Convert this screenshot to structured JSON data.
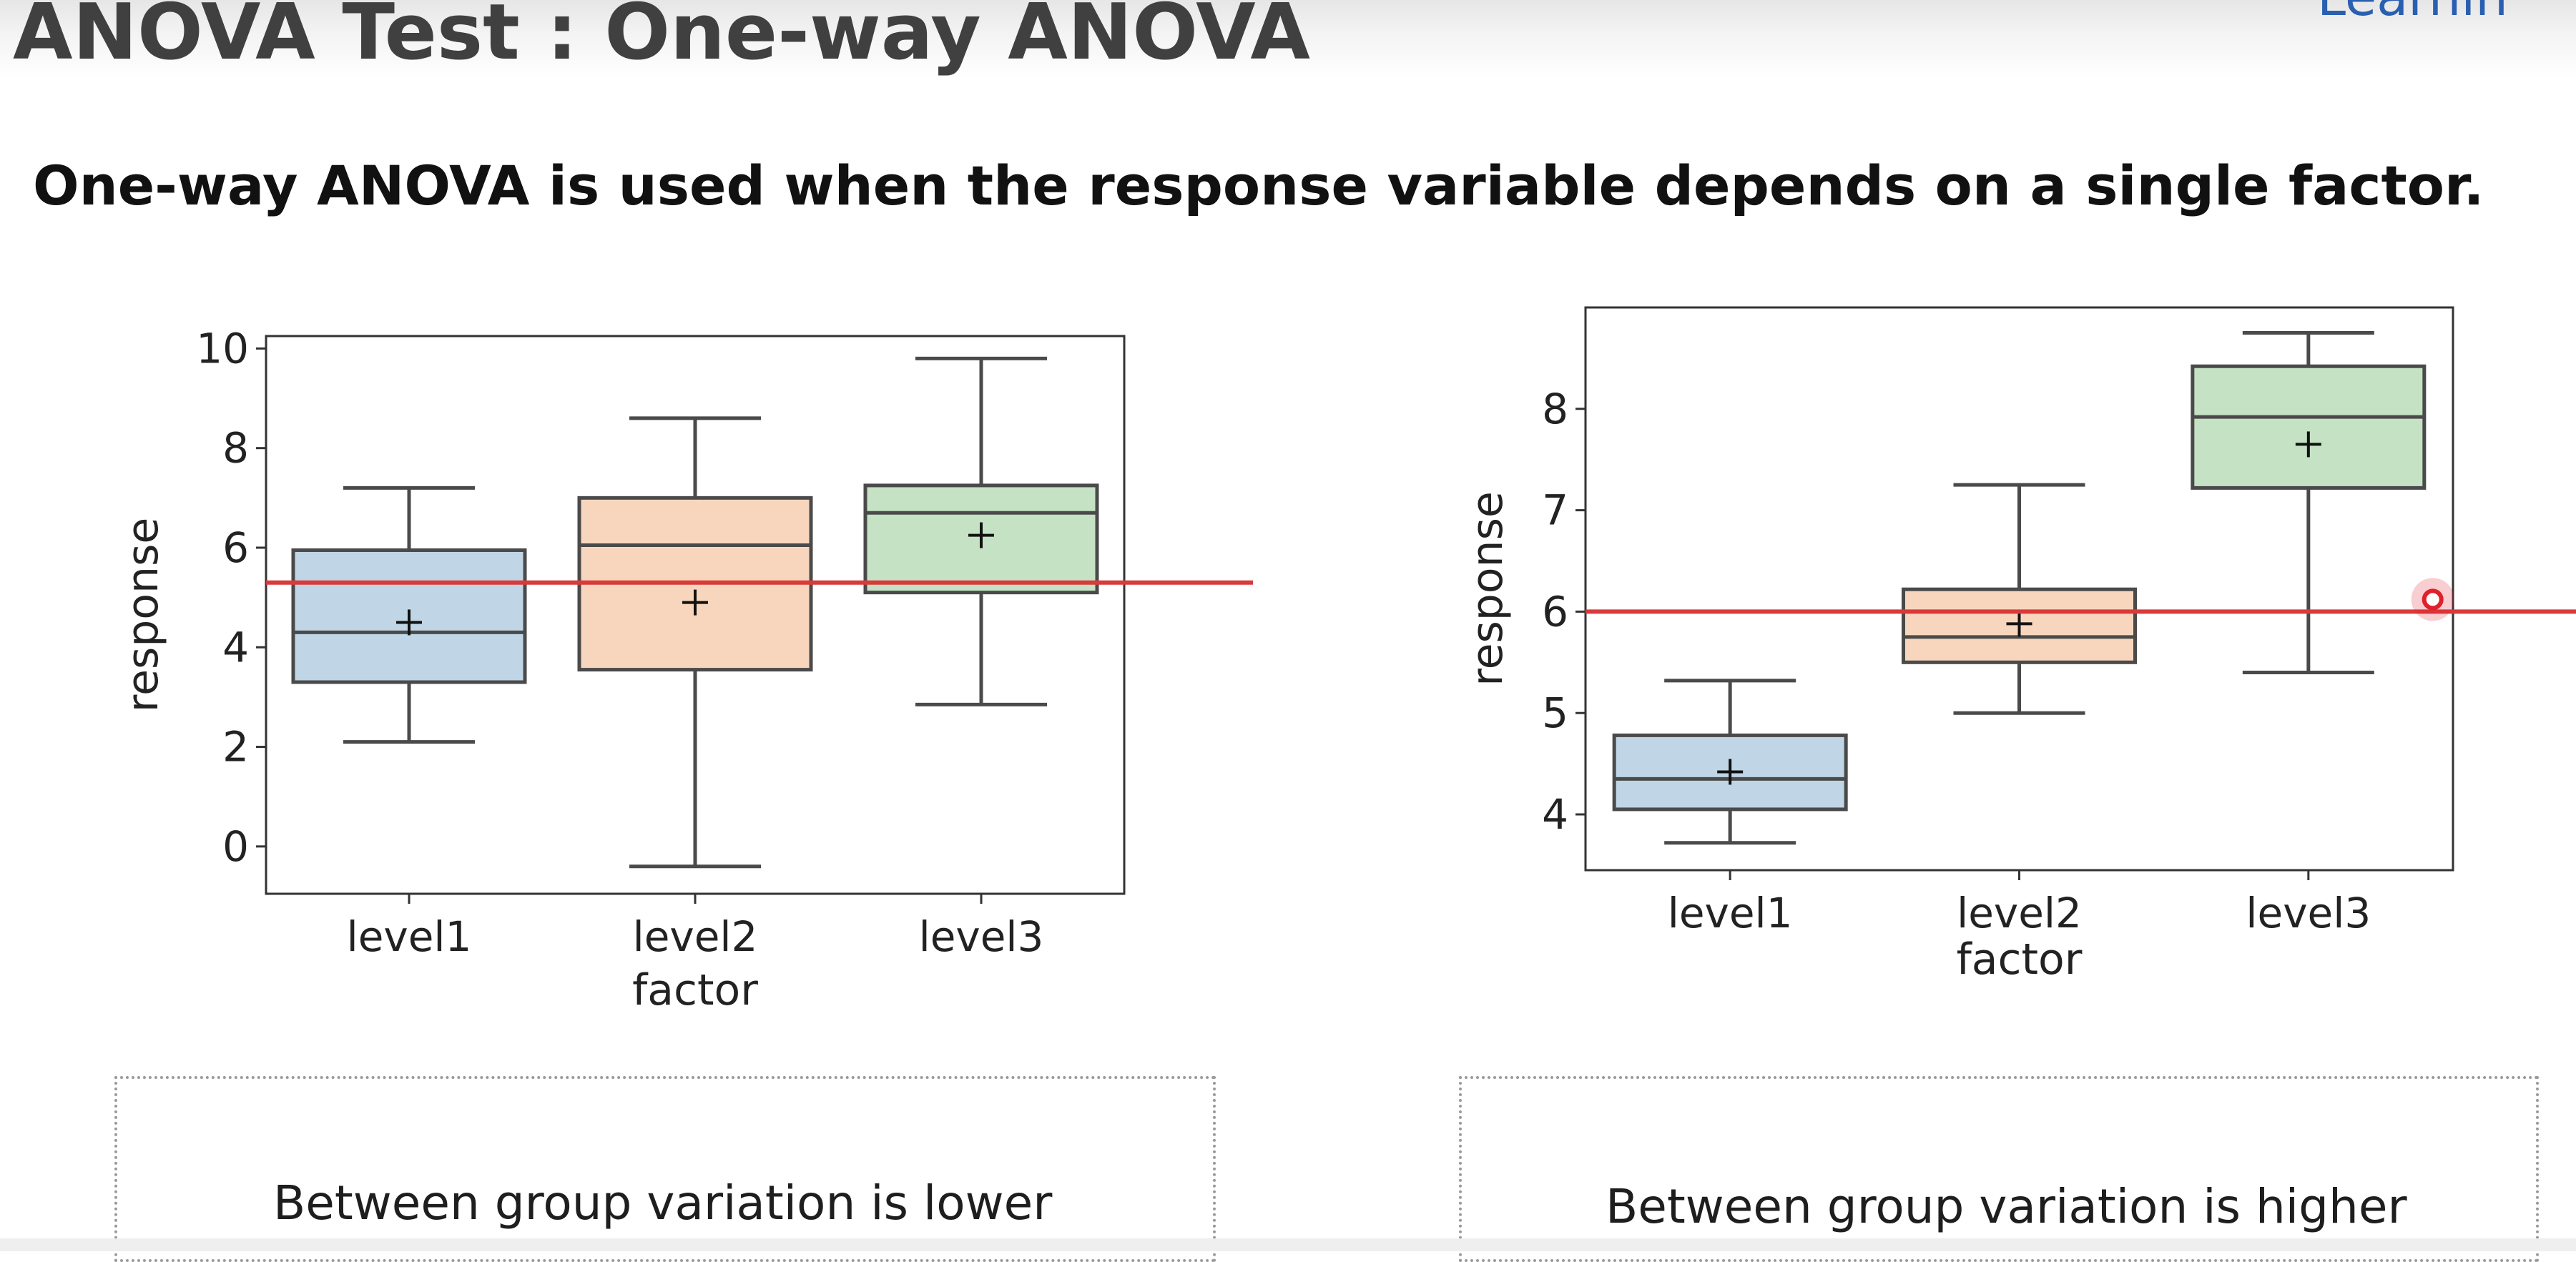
{
  "slide": {
    "title": "ANOVA Test : One-way ANOVA",
    "corner_text": "Learnin",
    "subtitle": "One-way ANOVA is used when the response variable depends on a single factor."
  },
  "notes": {
    "left": "Between group variation is lower",
    "right": "Between group variation is higher"
  },
  "chart_data": [
    {
      "type": "boxplot",
      "xlabel": "factor",
      "ylabel": "response",
      "categories": [
        "level1",
        "level2",
        "level3"
      ],
      "ylim": [
        -0.95,
        10.25
      ],
      "yticks": [
        0,
        2,
        4,
        6,
        8,
        10
      ],
      "grid": false,
      "boxes": [
        {
          "category": "level1",
          "whisker_low": 2.1,
          "q1": 3.3,
          "median": 4.3,
          "q3": 5.95,
          "whisker_high": 7.2,
          "mean": 4.5,
          "color": "#c0d6e6"
        },
        {
          "category": "level2",
          "whisker_low": -0.4,
          "q1": 3.55,
          "median": 6.05,
          "q3": 7.0,
          "whisker_high": 8.6,
          "mean": 4.9,
          "color": "#f8d6bd"
        },
        {
          "category": "level3",
          "whisker_low": 2.85,
          "q1": 5.1,
          "median": 6.7,
          "q3": 7.25,
          "whisker_high": 9.8,
          "mean": 6.25,
          "color": "#c5e2c5"
        }
      ],
      "reference_line": {
        "y": 5.3,
        "color": "#d93a3a"
      }
    },
    {
      "type": "boxplot",
      "xlabel": "factor",
      "ylabel": "response",
      "categories": [
        "level1",
        "level2",
        "level3"
      ],
      "ylim": [
        3.45,
        9.0
      ],
      "yticks": [
        4,
        5,
        6,
        7,
        8
      ],
      "grid": false,
      "boxes": [
        {
          "category": "level1",
          "whisker_low": 3.72,
          "q1": 4.05,
          "median": 4.35,
          "q3": 4.78,
          "whisker_high": 5.32,
          "mean": 4.42,
          "color": "#c0d6e6"
        },
        {
          "category": "level2",
          "whisker_low": 5.0,
          "q1": 5.5,
          "median": 5.75,
          "q3": 6.22,
          "whisker_high": 7.25,
          "mean": 5.88,
          "color": "#f8d6bd"
        },
        {
          "category": "level3",
          "whisker_low": 5.4,
          "q1": 7.22,
          "median": 7.92,
          "q3": 8.42,
          "whisker_high": 8.75,
          "mean": 7.65,
          "color": "#c5e2c5"
        }
      ],
      "reference_line": {
        "y": 6.0,
        "color": "#d93a3a"
      }
    }
  ],
  "pointer": {
    "chart": 1,
    "x": 2.43,
    "y": 6.12,
    "color": "#e0202a"
  }
}
